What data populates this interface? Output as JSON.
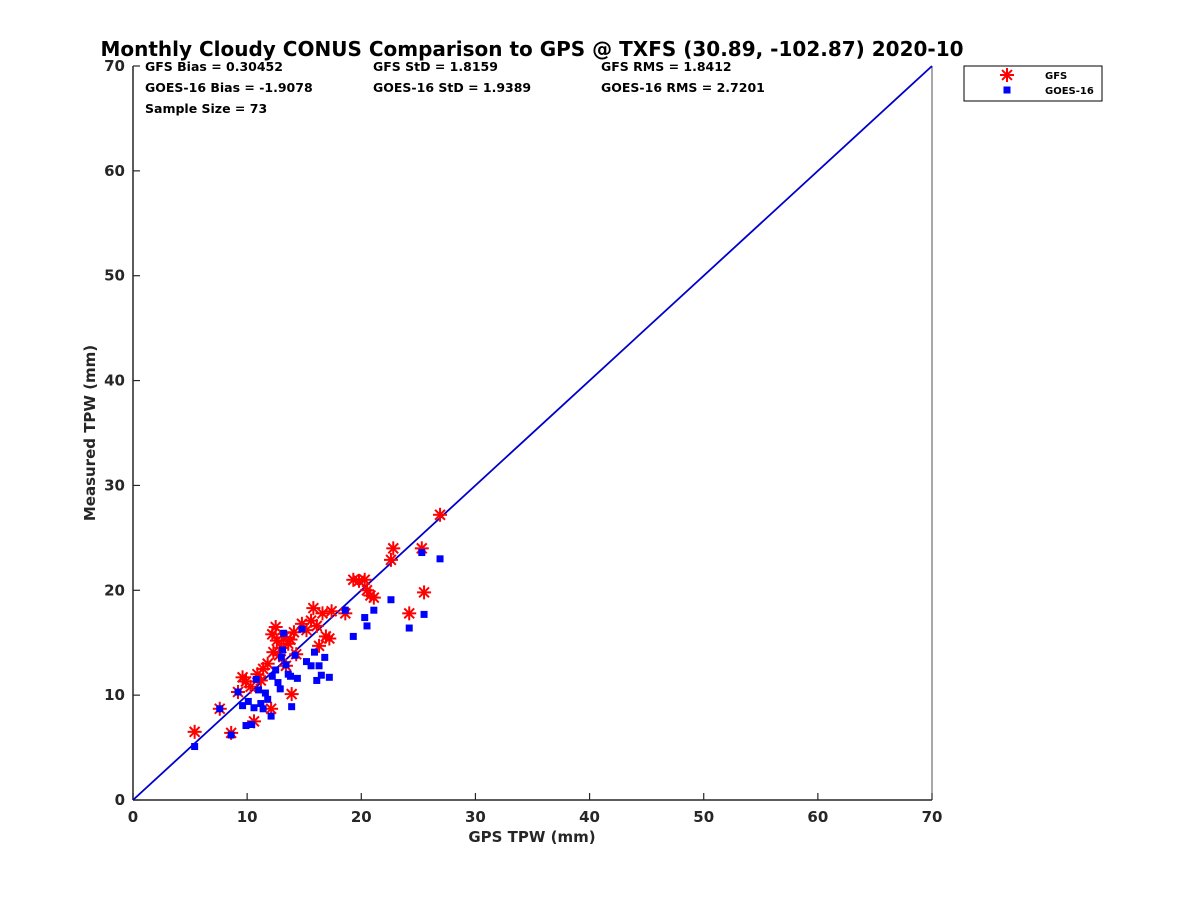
{
  "chart_data": {
    "type": "scatter",
    "title": "Monthly Cloudy CONUS Comparison to GPS @ TXFS (30.89, -102.87) 2020-10",
    "xlabel": "GPS TPW (mm)",
    "ylabel": "Measured TPW (mm)",
    "xlim": [
      0,
      70
    ],
    "ylim": [
      0,
      70
    ],
    "xticks": [
      "0",
      "10",
      "20",
      "30",
      "40",
      "50",
      "60",
      "70"
    ],
    "yticks": [
      "0",
      "10",
      "20",
      "30",
      "40",
      "50",
      "60",
      "70"
    ],
    "grid": false,
    "legend_position": "top-right outside",
    "stats": {
      "gfs_bias": "GFS Bias = 0.30452",
      "goes_bias": "GOES-16 Bias = -1.9078",
      "sample_size": "Sample Size = 73",
      "gfs_std": "GFS StD = 1.8159",
      "goes_std": "GOES-16 StD = 1.9389",
      "gfs_rms": "GFS RMS = 1.8412",
      "goes_rms": "GOES-16 RMS = 2.7201"
    },
    "reference_line": {
      "x": [
        0,
        70
      ],
      "y": [
        0,
        70
      ],
      "color": "#0000cc"
    },
    "series": [
      {
        "name": "GFS",
        "marker": "asterisk",
        "color": "#ff0000",
        "points": [
          [
            5.4,
            6.5
          ],
          [
            7.6,
            8.7
          ],
          [
            8.6,
            6.4
          ],
          [
            9.2,
            10.3
          ],
          [
            9.6,
            11.7
          ],
          [
            9.9,
            11.3
          ],
          [
            10.3,
            10.8
          ],
          [
            10.6,
            7.5
          ],
          [
            10.9,
            12.0
          ],
          [
            11.2,
            11.4
          ],
          [
            11.4,
            12.5
          ],
          [
            11.8,
            13.0
          ],
          [
            12.1,
            8.7
          ],
          [
            12.2,
            15.8
          ],
          [
            12.3,
            14.1
          ],
          [
            12.5,
            16.5
          ],
          [
            12.6,
            15.2
          ],
          [
            12.8,
            13.8
          ],
          [
            13.0,
            14.5
          ],
          [
            13.2,
            15.5
          ],
          [
            13.4,
            12.8
          ],
          [
            13.6,
            14.9
          ],
          [
            13.8,
            15.3
          ],
          [
            13.9,
            10.1
          ],
          [
            14.1,
            16.0
          ],
          [
            14.3,
            13.9
          ],
          [
            14.8,
            16.8
          ],
          [
            15.2,
            16.2
          ],
          [
            15.6,
            17.1
          ],
          [
            15.8,
            18.3
          ],
          [
            16.1,
            16.6
          ],
          [
            16.3,
            14.7
          ],
          [
            16.6,
            17.8
          ],
          [
            16.9,
            15.6
          ],
          [
            17.2,
            15.4
          ],
          [
            17.4,
            18.0
          ],
          [
            18.6,
            17.8
          ],
          [
            19.3,
            21.0
          ],
          [
            19.8,
            20.9
          ],
          [
            20.3,
            21.0
          ],
          [
            20.5,
            20.0
          ],
          [
            20.8,
            19.5
          ],
          [
            21.1,
            19.3
          ],
          [
            22.6,
            22.9
          ],
          [
            22.8,
            24.0
          ],
          [
            24.2,
            17.8
          ],
          [
            25.3,
            24.0
          ],
          [
            25.5,
            19.8
          ],
          [
            26.9,
            27.2
          ]
        ]
      },
      {
        "name": "GOES-16",
        "marker": "square",
        "color": "#0000ff",
        "points": [
          [
            5.4,
            5.1
          ],
          [
            7.6,
            8.7
          ],
          [
            8.6,
            6.2
          ],
          [
            9.2,
            10.3
          ],
          [
            9.6,
            9.0
          ],
          [
            9.9,
            7.1
          ],
          [
            10.1,
            9.4
          ],
          [
            10.4,
            7.2
          ],
          [
            10.6,
            8.8
          ],
          [
            10.8,
            11.5
          ],
          [
            11.0,
            10.5
          ],
          [
            11.2,
            9.2
          ],
          [
            11.4,
            8.7
          ],
          [
            11.6,
            10.2
          ],
          [
            11.8,
            9.6
          ],
          [
            12.1,
            8.0
          ],
          [
            12.2,
            11.8
          ],
          [
            12.5,
            12.4
          ],
          [
            12.7,
            11.2
          ],
          [
            12.9,
            10.6
          ],
          [
            13.0,
            13.6
          ],
          [
            13.1,
            14.3
          ],
          [
            13.2,
            15.9
          ],
          [
            13.4,
            12.9
          ],
          [
            13.6,
            12.0
          ],
          [
            13.8,
            11.8
          ],
          [
            13.9,
            8.9
          ],
          [
            14.2,
            13.8
          ],
          [
            14.4,
            11.6
          ],
          [
            14.8,
            16.3
          ],
          [
            15.2,
            13.2
          ],
          [
            15.6,
            12.8
          ],
          [
            15.9,
            14.1
          ],
          [
            16.1,
            11.4
          ],
          [
            16.3,
            12.8
          ],
          [
            16.5,
            11.9
          ],
          [
            16.8,
            13.6
          ],
          [
            17.2,
            11.7
          ],
          [
            18.6,
            18.1
          ],
          [
            19.3,
            15.6
          ],
          [
            20.3,
            17.4
          ],
          [
            20.5,
            16.6
          ],
          [
            21.1,
            18.1
          ],
          [
            22.6,
            19.1
          ],
          [
            24.2,
            16.4
          ],
          [
            25.3,
            23.6
          ],
          [
            25.5,
            17.7
          ],
          [
            26.9,
            23.0
          ]
        ]
      }
    ]
  }
}
